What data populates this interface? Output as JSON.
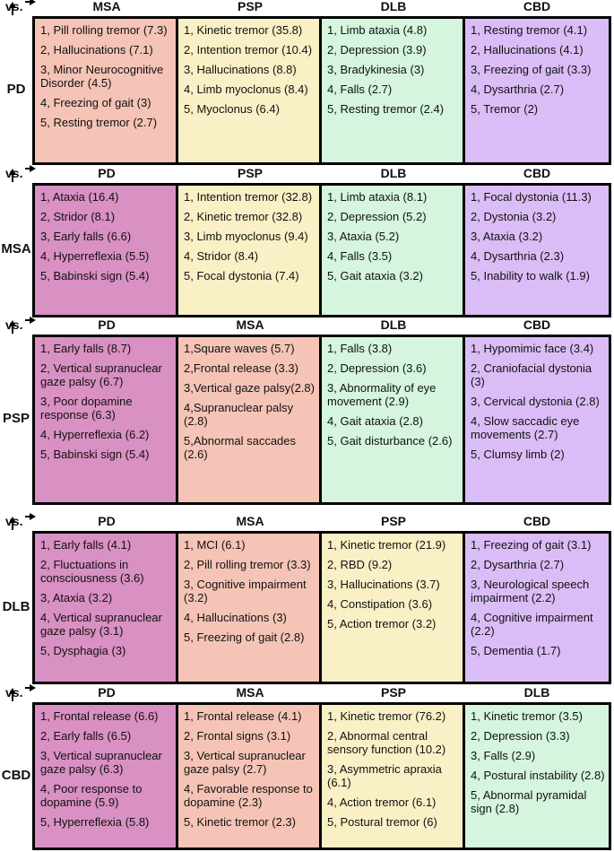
{
  "sections": [
    {
      "vs": "vs.",
      "label": "PD",
      "columns": [
        {
          "header": "MSA",
          "color": "#f5c4b6",
          "items": [
            "1, Pill rolling tremor (7.3)",
            "2, Hallucinations (7.1)",
            "3, Minor Neurocognitive Disorder (4.5)",
            "4, Freezing of gait (3)",
            "5, Resting tremor (2.7)"
          ]
        },
        {
          "header": "PSP",
          "color": "#faf0c6",
          "items": [
            "1, Kinetic tremor (35.8)",
            "2, Intention tremor (10.4)",
            "3, Hallucinations (8.8)",
            "4, Limb myoclonus (8.4)",
            "5, Myoclonus (6.4)"
          ]
        },
        {
          "header": "DLB",
          "color": "#d5f5de",
          "items": [
            "1, Limb ataxia (4.8)",
            "2, Depression (3.9)",
            "3, Bradykinesia (3)",
            "4, Falls (2.7)",
            "5, Resting tremor (2.4)"
          ]
        },
        {
          "header": "CBD",
          "color": "#dabdf6",
          "items": [
            "1, Resting tremor (4.1)",
            "2, Hallucinations (4.1)",
            "3, Freezing of gait (3.3)",
            "4, Dysarthria (2.7)",
            "5, Tremor (2)"
          ]
        }
      ]
    },
    {
      "vs": "vs.",
      "label": "MSA",
      "columns": [
        {
          "header": "PD",
          "color": "#d990c2",
          "items": [
            "1, Ataxia (16.4)",
            "2, Stridor (8.1)",
            "3, Early falls (6.6)",
            "4, Hyperreflexia (5.5)",
            "5, Babinski sign (5.4)"
          ]
        },
        {
          "header": "PSP",
          "color": "#faf0c6",
          "items": [
            "1, Intention tremor (32.8)",
            "2, Kinetic tremor (32.8)",
            "3, Limb myoclonus (9.4)",
            "4, Stridor (8.4)",
            "5, Focal dystonia (7.4)"
          ]
        },
        {
          "header": "DLB",
          "color": "#d5f5de",
          "items": [
            "1, Limb ataxia (8.1)",
            "2, Depression (5.2)",
            "3, Ataxia (5.2)",
            "4, Falls (3.5)",
            "5, Gait ataxia (3.2)"
          ]
        },
        {
          "header": "CBD",
          "color": "#dabdf6",
          "items": [
            "1, Focal dystonia (11.3)",
            "2, Dystonia (3.2)",
            "3, Ataxia (3.2)",
            "4, Dysarthria (2.3)",
            "5, Inability to walk (1.9)"
          ]
        }
      ]
    },
    {
      "vs": "vs.",
      "label": "PSP",
      "columns": [
        {
          "header": "PD",
          "color": "#d990c2",
          "items": [
            "1, Early falls (8.7)",
            "2, Vertical supranuclear gaze palsy (6.7)",
            "3, Poor dopamine response (6.3)",
            "4, Hyperreflexia (6.2)",
            "5, Babinski sign (5.4)"
          ]
        },
        {
          "header": "MSA",
          "color": "#f5c4b6",
          "items": [
            "1,Square waves (5.7)",
            "2,Frontal release (3.3)",
            "3,Vertical gaze palsy(2.8)",
            "4,Supranuclear palsy (2.8)",
            "5,Abnormal saccades (2.6)"
          ]
        },
        {
          "header": "DLB",
          "color": "#d5f5de",
          "items": [
            "1, Falls (3.8)",
            "2, Depression (3.6)",
            "3, Abnormality of eye movement (2.9)",
            "4, Gait ataxia (2.8)",
            "5, Gait disturbance (2.6)"
          ]
        },
        {
          "header": "CBD",
          "color": "#dabdf6",
          "items": [
            "1, Hypomimic face (3.4)",
            "2, Craniofacial dystonia (3)",
            "3, Cervical dystonia (2.8)",
            "4, Slow saccadic eye movements (2.7)",
            "5, Clumsy limb (2)"
          ]
        }
      ]
    },
    {
      "vs": "vs.",
      "label": "DLB",
      "columns": [
        {
          "header": "PD",
          "color": "#d990c2",
          "items": [
            "1, Early falls (4.1)",
            "2, Fluctuations in consciousness (3.6)",
            "3, Ataxia (3.2)",
            "4, Vertical supranuclear gaze palsy (3.1)",
            "5, Dysphagia (3)"
          ]
        },
        {
          "header": "MSA",
          "color": "#f5c4b6",
          "items": [
            "1, MCI (6.1)",
            "2, Pill rolling tremor (3.3)",
            "3, Cognitive impairment (3.2)",
            "4, Hallucinations (3)",
            "5, Freezing of gait (2.8)"
          ]
        },
        {
          "header": "PSP",
          "color": "#faf0c6",
          "items": [
            "1, Kinetic tremor (21.9)",
            "2, RBD (9.2)",
            "3, Hallucinations (3.7)",
            "4, Constipation (3.6)",
            "5, Action tremor (3.2)"
          ]
        },
        {
          "header": "CBD",
          "color": "#dabdf6",
          "items": [
            "1, Freezing of gait (3.1)",
            "2, Dysarthria (2.7)",
            "3, Neurological speech impairment (2.2)",
            "4, Cognitive impairment (2.2)",
            "5, Dementia (1.7)"
          ]
        }
      ]
    },
    {
      "vs": "vs.",
      "label": "CBD",
      "columns": [
        {
          "header": "PD",
          "color": "#d990c2",
          "items": [
            "1, Frontal release (6.6)",
            "2, Early falls (6.5)",
            "3, Vertical supranuclear gaze palsy (6.3)",
            "4, Poor response to dopamine (5.9)",
            "5, Hyperreflexia (5.8)"
          ]
        },
        {
          "header": "MSA",
          "color": "#f5c4b6",
          "items": [
            "1, Frontal release (4.1)",
            "2, Frontal signs (3.1)",
            "3, Vertical supranuclear gaze palsy (2.7)",
            "4, Favorable response to dopamine (2.3)",
            "5, Kinetic tremor (2.3)"
          ]
        },
        {
          "header": "PSP",
          "color": "#faf0c6",
          "items": [
            "1, Kinetic tremor (76.2)",
            "2, Abnormal central sensory function (10.2)",
            "3, Asymmetric apraxia (6.1)",
            "4, Action tremor (6.1)",
            "5, Postural tremor (6)"
          ]
        },
        {
          "header": "DLB",
          "color": "#d5f5de",
          "items": [
            "1, Kinetic tremor (3.5)",
            "2, Depression (3.3)",
            "3, Falls (2.9)",
            "4, Postural instability (2.8)",
            "5, Abnormal pyramidal sign (2.8)"
          ]
        }
      ]
    }
  ]
}
